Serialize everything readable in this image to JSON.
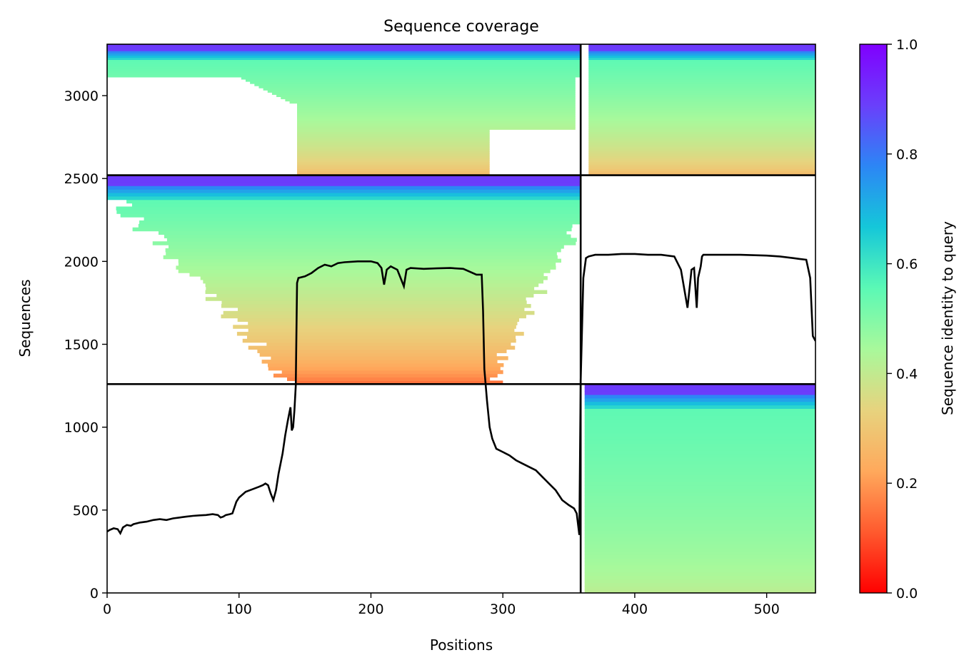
{
  "chart_data": {
    "type": "heatmap",
    "title": "Sequence coverage",
    "xlabel": "Positions",
    "ylabel": "Sequences",
    "xlim": [
      0,
      537
    ],
    "ylim": [
      0,
      3310
    ],
    "x_ticks": [
      0,
      100,
      200,
      300,
      400,
      500
    ],
    "y_ticks": [
      0,
      500,
      1000,
      1500,
      2000,
      2500,
      3000
    ],
    "colorbar": {
      "label": "Sequence identity to query",
      "range": [
        0,
        1
      ],
      "ticks": [
        0.0,
        0.2,
        0.4,
        0.6,
        0.8,
        1.0
      ],
      "tick_labels": [
        "0.0",
        "0.2",
        "0.4",
        "0.6",
        "0.8",
        "1.0"
      ],
      "colormap": [
        "#ff0000",
        "#ff5a2e",
        "#ffa95c",
        "#e7d37e",
        "#a8f99b",
        "#5bf9b5",
        "#15c7d9",
        "#2c86f5",
        "#6a3ffb",
        "#8000ff"
      ]
    },
    "grid": false,
    "chain_boundaries": {
      "x": [
        359
      ],
      "y": [
        1260,
        2520
      ]
    },
    "blocks": [
      {
        "name": "chain1-only",
        "x": [
          0,
          359
        ],
        "y": [
          2520,
          3310
        ],
        "identity_range": [
          0.25,
          0.9
        ]
      },
      {
        "name": "chain2-top",
        "x": [
          359,
          537
        ],
        "y": [
          2520,
          3310
        ],
        "identity_range": [
          0.25,
          0.9
        ]
      },
      {
        "name": "chain1-middle",
        "x": [
          0,
          359
        ],
        "y": [
          1260,
          2520
        ],
        "identity_range": [
          0.12,
          0.9
        ]
      },
      {
        "name": "chain2-bottom",
        "x": [
          359,
          537
        ],
        "y": [
          0,
          1260
        ],
        "identity_range": [
          0.4,
          0.9
        ]
      }
    ],
    "coverage_line": {
      "x": [
        0,
        2,
        5,
        8,
        10,
        12,
        15,
        18,
        20,
        25,
        30,
        35,
        40,
        45,
        50,
        55,
        60,
        65,
        70,
        75,
        80,
        84,
        86,
        88,
        90,
        93,
        95,
        98,
        100,
        105,
        110,
        115,
        118,
        120,
        122,
        124,
        126,
        128,
        130,
        133,
        135,
        137,
        138,
        139,
        140,
        141,
        142,
        143,
        144,
        145,
        150,
        155,
        160,
        165,
        170,
        175,
        180,
        190,
        200,
        205,
        208,
        210,
        212,
        215,
        220,
        223,
        225,
        227,
        230,
        240,
        250,
        260,
        270,
        280,
        284,
        285,
        286,
        288,
        290,
        292,
        295,
        300,
        305,
        310,
        315,
        320,
        325,
        330,
        335,
        340,
        345,
        350,
        354,
        356,
        358,
        359,
        361,
        363,
        365,
        370,
        380,
        390,
        400,
        410,
        420,
        430,
        435,
        440,
        443,
        445,
        447,
        448,
        450,
        451,
        452,
        455,
        460,
        480,
        500,
        510,
        520,
        525,
        530,
        533,
        535,
        537
      ],
      "y": [
        370,
        380,
        390,
        385,
        360,
        395,
        410,
        405,
        415,
        425,
        430,
        440,
        445,
        440,
        450,
        455,
        460,
        465,
        468,
        470,
        475,
        470,
        455,
        460,
        470,
        475,
        480,
        550,
        575,
        610,
        625,
        640,
        650,
        660,
        650,
        600,
        560,
        620,
        720,
        840,
        950,
        1040,
        1080,
        1120,
        980,
        1000,
        1100,
        1250,
        1870,
        1900,
        1910,
        1930,
        1960,
        1980,
        1970,
        1990,
        1995,
        2000,
        2000,
        1990,
        1960,
        1860,
        1950,
        1970,
        1950,
        1890,
        1850,
        1950,
        1960,
        1955,
        1958,
        1960,
        1955,
        1920,
        1920,
        1700,
        1350,
        1160,
        1000,
        930,
        870,
        850,
        830,
        800,
        780,
        760,
        740,
        700,
        660,
        620,
        560,
        530,
        510,
        480,
        350,
        1280,
        1900,
        2020,
        2030,
        2040,
        2040,
        2045,
        2045,
        2040,
        2040,
        2030,
        1950,
        1720,
        1950,
        1960,
        1720,
        1900,
        1970,
        2030,
        2040,
        2040,
        2040,
        2040,
        2035,
        2030,
        2020,
        2015,
        2010,
        1900,
        1550,
        1520
      ]
    }
  }
}
